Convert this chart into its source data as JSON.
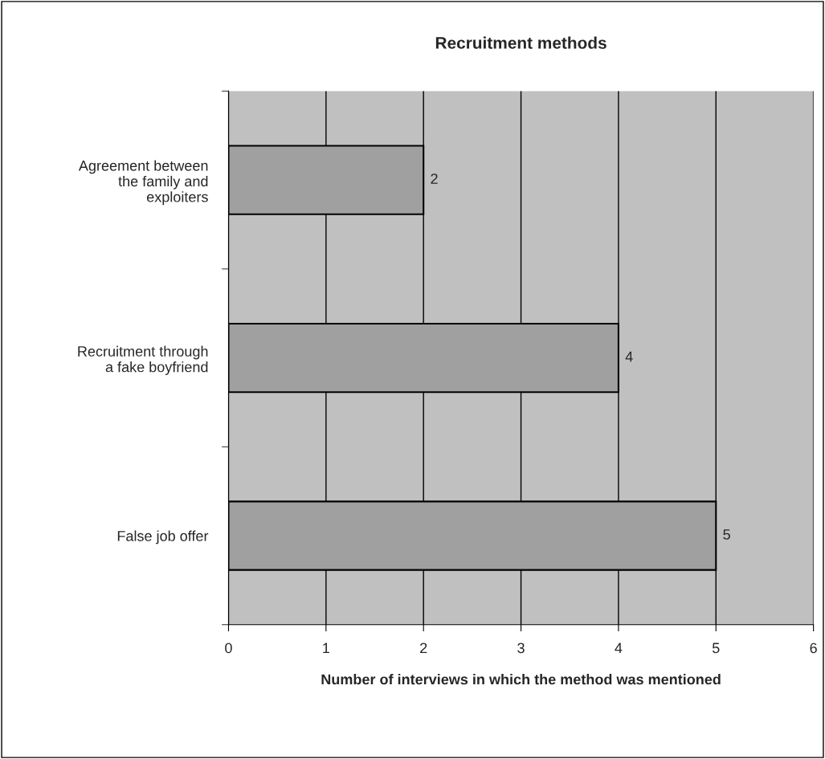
{
  "chart_data": {
    "type": "bar",
    "orientation": "horizontal",
    "title": "Recruitment methods",
    "xlabel": "Number of interviews in which the method was mentioned",
    "categories": [
      "Agreement between the family and exploiters",
      "Recruitment through a fake boyfriend",
      "False job offer"
    ],
    "values": [
      2,
      4,
      5
    ],
    "color": "#a0a0a0",
    "xlim": [
      0,
      6
    ],
    "xticks": [
      0,
      1,
      2,
      3,
      4,
      5,
      6
    ],
    "grid": "x",
    "data_labels": true,
    "legend": false
  }
}
